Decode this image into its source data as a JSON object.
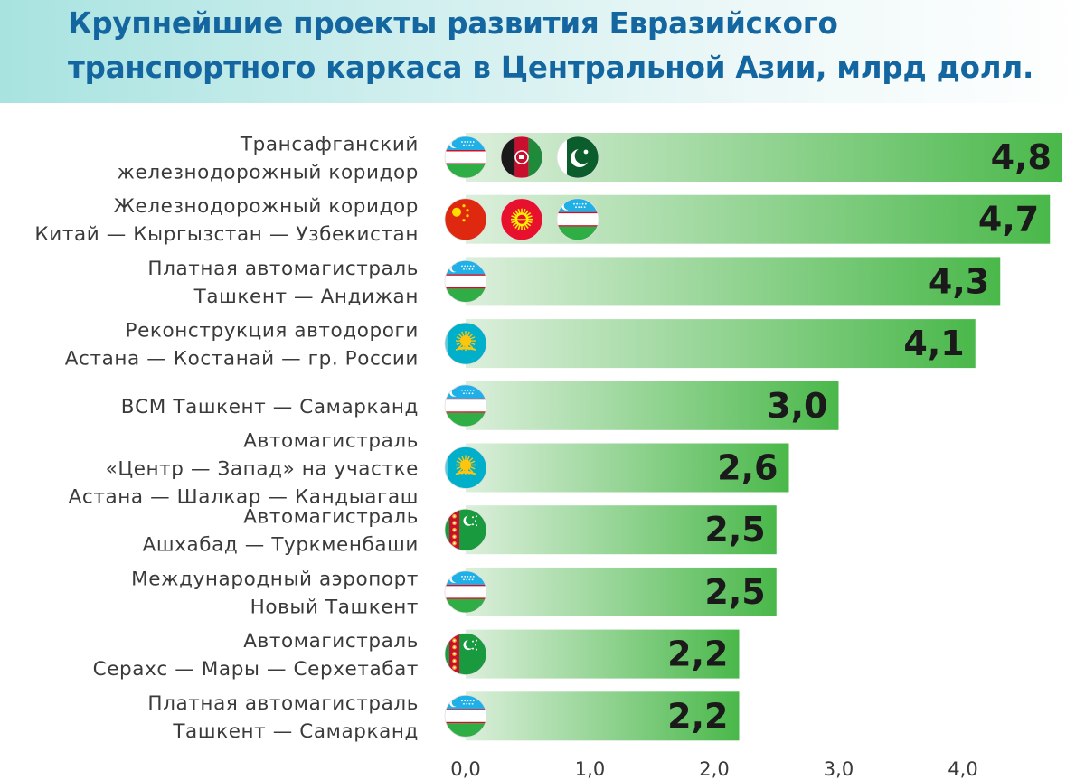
{
  "chart_data": {
    "type": "bar",
    "orientation": "horizontal",
    "title": "Крупнейшие проекты развития Евразийского\nтранспортного каркаса в Центральной Азии, млрд долл.",
    "categories": [
      [
        "Трансафганский",
        "железнодорожный коридор"
      ],
      [
        "Железнодорожный коридор",
        "Китай — Кыргызстан — Узбекистан"
      ],
      [
        "Платная автомагистраль",
        "Ташкент — Андижан"
      ],
      [
        "Реконструкция автодороги",
        "Астана — Костанай — гр. России"
      ],
      [
        "ВСМ Ташкент — Самарканд"
      ],
      [
        "Автомагистраль",
        "«Центр — Запад» на участке",
        "Астана — Шалкар — Кандыагаш"
      ],
      [
        "Автомагистраль",
        "Ашхабад — Туркменбаши"
      ],
      [
        "Международный аэропорт",
        "Новый Ташкент"
      ],
      [
        "Автомагистраль",
        "Серахс — Мары — Серхетабат"
      ],
      [
        "Платная автомагистраль",
        "Ташкент — Самарканд"
      ]
    ],
    "values": [
      4.8,
      4.7,
      4.3,
      4.1,
      3.0,
      2.6,
      2.5,
      2.5,
      2.2,
      2.2
    ],
    "value_labels": [
      "4,8",
      "4,7",
      "4,3",
      "4,1",
      "3,0",
      "2,6",
      "2,5",
      "2,5",
      "2,2",
      "2,2"
    ],
    "flags": [
      [
        "uzbekistan-flag",
        "afghanistan-flag",
        "pakistan-flag"
      ],
      [
        "china-flag",
        "kyrgyzstan-flag",
        "uzbekistan-flag"
      ],
      [
        "uzbekistan-flag"
      ],
      [
        "kazakhstan-flag"
      ],
      [
        "uzbekistan-flag"
      ],
      [
        "kazakhstan-flag"
      ],
      [
        "turkmenistan-flag"
      ],
      [
        "uzbekistan-flag"
      ],
      [
        "turkmenistan-flag"
      ],
      [
        "uzbekistan-flag"
      ]
    ],
    "x_ticks": [
      0,
      1,
      2,
      3,
      4
    ],
    "x_tick_labels": [
      "0,0",
      "1,0",
      "2,0",
      "3,0",
      "4,0"
    ],
    "xlim": [
      0,
      4.8
    ],
    "xlabel": "",
    "ylabel": "",
    "grid": false,
    "legend": "none",
    "colors": {
      "bar_start": "#cfead0",
      "bar_end": "#4ab84a",
      "title": "#1466a0",
      "header_bg": "#a8e3e0"
    }
  }
}
